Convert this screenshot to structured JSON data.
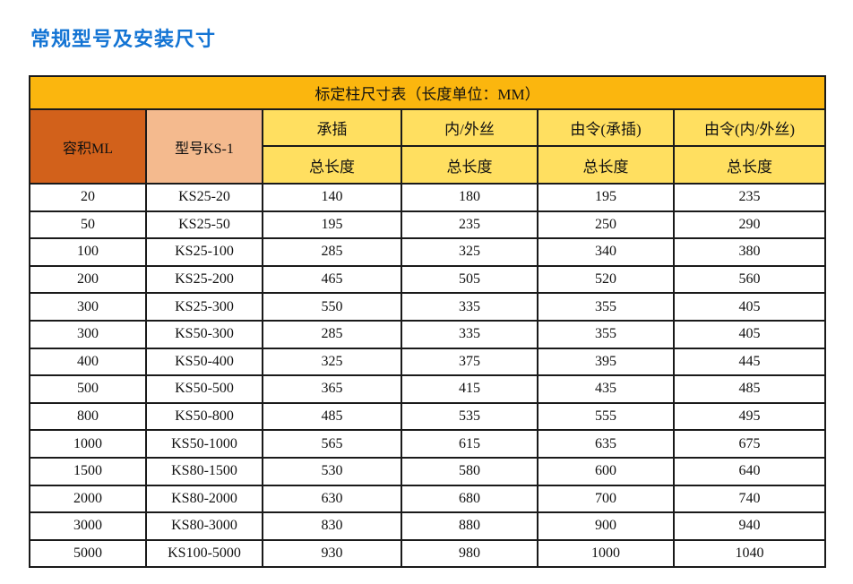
{
  "page_title": "常规型号及安装尺寸",
  "table": {
    "caption": "标定柱尺寸表（长度单位：MM）",
    "volume_header": "容积ML",
    "model_header": "型号KS-1",
    "groups": [
      {
        "label": "承插",
        "sub": "总长度"
      },
      {
        "label": "内/外丝",
        "sub": "总长度"
      },
      {
        "label": "由令(承插)",
        "sub": "总长度"
      },
      {
        "label": "由令(内/外丝)",
        "sub": "总长度"
      }
    ],
    "rows": [
      [
        "20",
        "KS25-20",
        "140",
        "180",
        "195",
        "235"
      ],
      [
        "50",
        "KS25-50",
        "195",
        "235",
        "250",
        "290"
      ],
      [
        "100",
        "KS25-100",
        "285",
        "325",
        "340",
        "380"
      ],
      [
        "200",
        "KS25-200",
        "465",
        "505",
        "520",
        "560"
      ],
      [
        "300",
        "KS25-300",
        "550",
        "335",
        "355",
        "405"
      ],
      [
        "300",
        "KS50-300",
        "285",
        "335",
        "355",
        "405"
      ],
      [
        "400",
        "KS50-400",
        "325",
        "375",
        "395",
        "445"
      ],
      [
        "500",
        "KS50-500",
        "365",
        "415",
        "435",
        "485"
      ],
      [
        "800",
        "KS50-800",
        "485",
        "535",
        "555",
        "495"
      ],
      [
        "1000",
        "KS50-1000",
        "565",
        "615",
        "635",
        "675"
      ],
      [
        "1500",
        "KS80-1500",
        "530",
        "580",
        "600",
        "640"
      ],
      [
        "2000",
        "KS80-2000",
        "630",
        "680",
        "700",
        "740"
      ],
      [
        "3000",
        "KS80-3000",
        "830",
        "880",
        "900",
        "940"
      ],
      [
        "5000",
        "KS100-5000",
        "930",
        "980",
        "1000",
        "1040"
      ]
    ]
  },
  "colors": {
    "title_blue": "#1374d4",
    "header_gold": "#fbb60e",
    "subheader_yellow": "#ffdf60",
    "volume_orange": "#d2611b",
    "model_peach": "#f4ba8e",
    "border_black": "#1a1a1a"
  }
}
